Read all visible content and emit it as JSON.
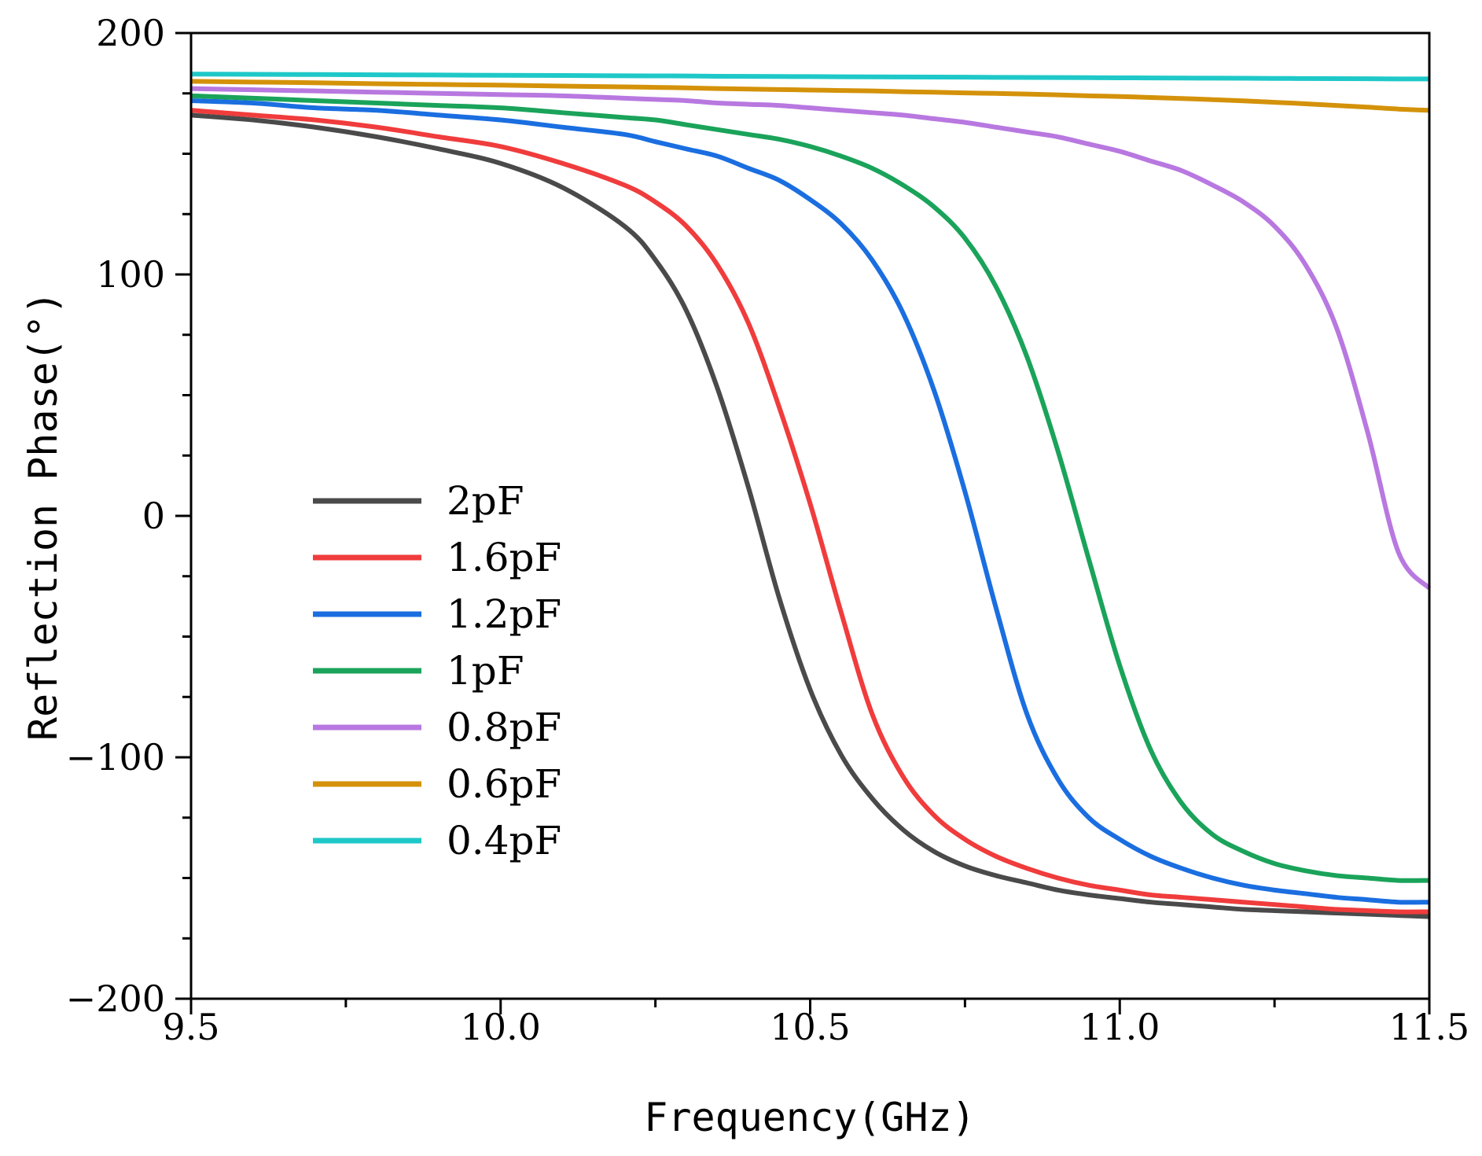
{
  "chart_data": {
    "type": "line",
    "title": "",
    "xlabel": "Frequency(GHz)",
    "ylabel": "Reflection Phase(°)",
    "xlim": [
      9.5,
      11.5
    ],
    "ylim": [
      -200,
      200
    ],
    "xticks": [
      9.5,
      10.0,
      10.5,
      11.0,
      11.5
    ],
    "xtick_labels": [
      "9.5",
      "10.0",
      "10.5",
      "11.0",
      "11.5"
    ],
    "yticks": [
      200,
      100,
      0,
      -100,
      -200
    ],
    "ytick_labels": [
      "200",
      "100",
      "0",
      "−100",
      "−200"
    ],
    "grid": false,
    "legend_position": "lower-left",
    "x": [
      9.5,
      9.6,
      9.7,
      9.8,
      9.9,
      10.0,
      10.1,
      10.2,
      10.25,
      10.3,
      10.35,
      10.4,
      10.45,
      10.5,
      10.55,
      10.6,
      10.65,
      10.7,
      10.75,
      10.8,
      10.85,
      10.9,
      10.95,
      11.0,
      11.05,
      11.1,
      11.15,
      11.2,
      11.25,
      11.3,
      11.35,
      11.4,
      11.45,
      11.5
    ],
    "series": [
      {
        "name": "2pF",
        "color": "#4a4a4a",
        "values": [
          166,
          164,
          161,
          157,
          152,
          146,
          136,
          120,
          106,
          85,
          53,
          12,
          -34,
          -72,
          -99,
          -117,
          -130,
          -139,
          -145,
          -149,
          -152,
          -155,
          -157,
          -158.5,
          -160,
          -161,
          -162,
          -163,
          -163.5,
          -164,
          -164.5,
          -165,
          -165.5,
          -166
        ]
      },
      {
        "name": "1.6pF",
        "color": "#f03c3c",
        "values": [
          168,
          166,
          164,
          161,
          157,
          153,
          146,
          137,
          130,
          120,
          104,
          80,
          45,
          5,
          -40,
          -82,
          -108,
          -124,
          -134,
          -141,
          -146,
          -150,
          -153,
          -155,
          -157,
          -158,
          -159,
          -160,
          -161,
          -162,
          -163,
          -163.5,
          -164,
          -164
        ]
      },
      {
        "name": "1.2pF",
        "color": "#1a6ee0",
        "values": [
          172,
          171,
          169,
          168,
          166,
          164,
          161,
          158,
          155,
          152,
          149,
          144,
          139,
          131,
          121,
          106,
          84,
          52,
          10,
          -38,
          -82,
          -109,
          -125,
          -134,
          -141,
          -146,
          -150,
          -153,
          -155,
          -156.5,
          -158,
          -159,
          -160,
          -160
        ]
      },
      {
        "name": "1pF",
        "color": "#1aa35a",
        "values": [
          174,
          173,
          172,
          171,
          170,
          169,
          167,
          165,
          164,
          162,
          160,
          158,
          156,
          153,
          149,
          144,
          137,
          128,
          115,
          95,
          66,
          27,
          -18,
          -62,
          -97,
          -119,
          -132,
          -139,
          -144,
          -147,
          -149,
          -150,
          -151,
          -151
        ]
      },
      {
        "name": "0.8pF",
        "color": "#b878e0",
        "values": [
          177,
          176.5,
          176,
          175.5,
          175,
          174.5,
          174,
          173,
          172.5,
          172,
          171,
          170.5,
          170,
          169,
          168,
          167,
          166,
          164.5,
          163,
          161,
          159,
          157,
          154,
          151,
          147,
          143,
          137,
          130,
          120,
          104,
          78,
          35,
          -15,
          -30
        ]
      },
      {
        "name": "0.6pF",
        "color": "#d4920a",
        "values": [
          180,
          179.7,
          179.4,
          179,
          178.7,
          178.4,
          178,
          177.7,
          177.5,
          177.3,
          177,
          176.8,
          176.6,
          176.4,
          176.2,
          176,
          175.7,
          175.5,
          175.2,
          175,
          174.7,
          174.4,
          174,
          173.7,
          173.3,
          172.9,
          172.4,
          171.9,
          171.3,
          170.7,
          170,
          169.3,
          168.5,
          168
        ]
      },
      {
        "name": "0.4pF",
        "color": "#1fc8c8",
        "values": [
          183,
          182.9,
          182.8,
          182.7,
          182.6,
          182.5,
          182.4,
          182.3,
          182.25,
          182.2,
          182.1,
          182.05,
          182,
          181.95,
          181.9,
          181.85,
          181.8,
          181.75,
          181.7,
          181.65,
          181.6,
          181.55,
          181.5,
          181.45,
          181.4,
          181.35,
          181.3,
          181.25,
          181.2,
          181.15,
          181.1,
          181.05,
          181,
          181
        ]
      }
    ]
  }
}
